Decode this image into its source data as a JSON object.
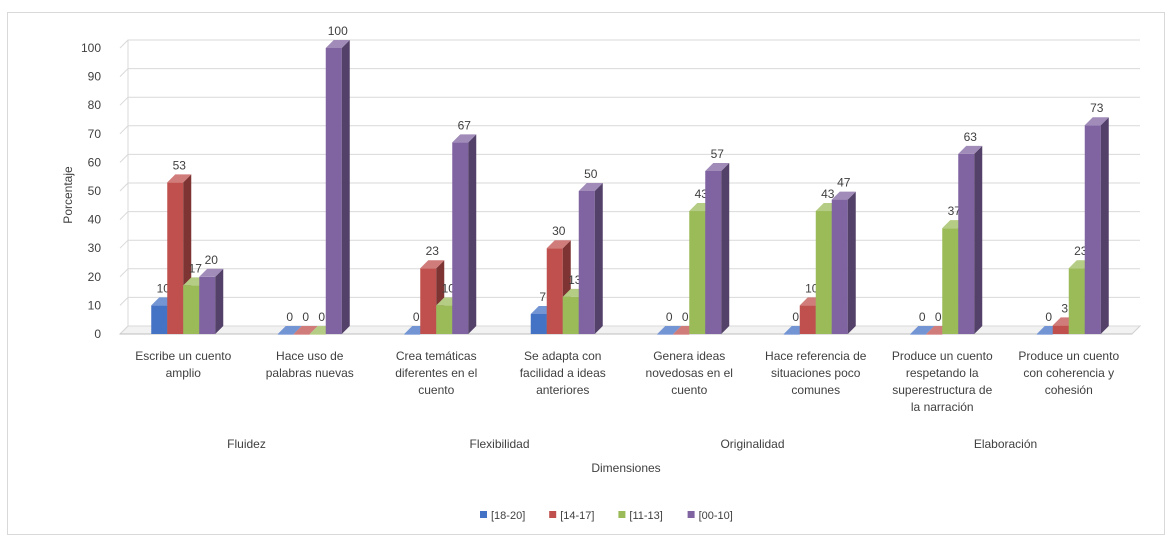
{
  "chart_data": {
    "type": "bar",
    "style": "3d-clustered-column",
    "xlabel": "Dimensiones",
    "ylabel": "Porcentaje",
    "ylim": [
      0,
      100
    ],
    "yticks": [
      "0",
      "10",
      "20",
      "30",
      "40",
      "50",
      "60",
      "70",
      "80",
      "90",
      "100"
    ],
    "grid": true,
    "legend_position": "bottom",
    "categories": [
      [
        "Escribe un cuento",
        "amplio"
      ],
      [
        "Hace uso de",
        "palabras nuevas"
      ],
      [
        "Crea temáticas",
        "diferentes en el",
        "cuento"
      ],
      [
        "Se adapta con",
        "facilidad a ideas",
        "anteriores"
      ],
      [
        "Genera ideas",
        "novedosas en el",
        "cuento"
      ],
      [
        "Hace referencia de",
        "situaciones poco",
        "comunes"
      ],
      [
        "Produce un cuento",
        "respetando la",
        "superestructura de",
        "la narración"
      ],
      [
        "Produce un cuento",
        "con coherencia y",
        "cohesión"
      ]
    ],
    "groups": [
      {
        "name": "Fluidez",
        "span": [
          0,
          1
        ]
      },
      {
        "name": "Flexibilidad",
        "span": [
          2,
          3
        ]
      },
      {
        "name": "Originalidad",
        "span": [
          4,
          5
        ]
      },
      {
        "name": "Elaboración",
        "span": [
          6,
          7
        ]
      }
    ],
    "series": [
      {
        "name": "[18-20]",
        "color": "#4472C4",
        "values": [
          10,
          0,
          0,
          7,
          0,
          0,
          0,
          0
        ]
      },
      {
        "name": "[14-17]",
        "color": "#C0504D",
        "values": [
          53,
          0,
          23,
          30,
          0,
          10,
          0,
          3
        ]
      },
      {
        "name": "[11-13]",
        "color": "#9BBB59",
        "values": [
          17,
          0,
          10,
          13,
          43,
          43,
          37,
          23
        ]
      },
      {
        "name": "[00-10]",
        "color": "#8064A2",
        "values": [
          20,
          100,
          67,
          50,
          57,
          47,
          63,
          73
        ]
      }
    ]
  }
}
